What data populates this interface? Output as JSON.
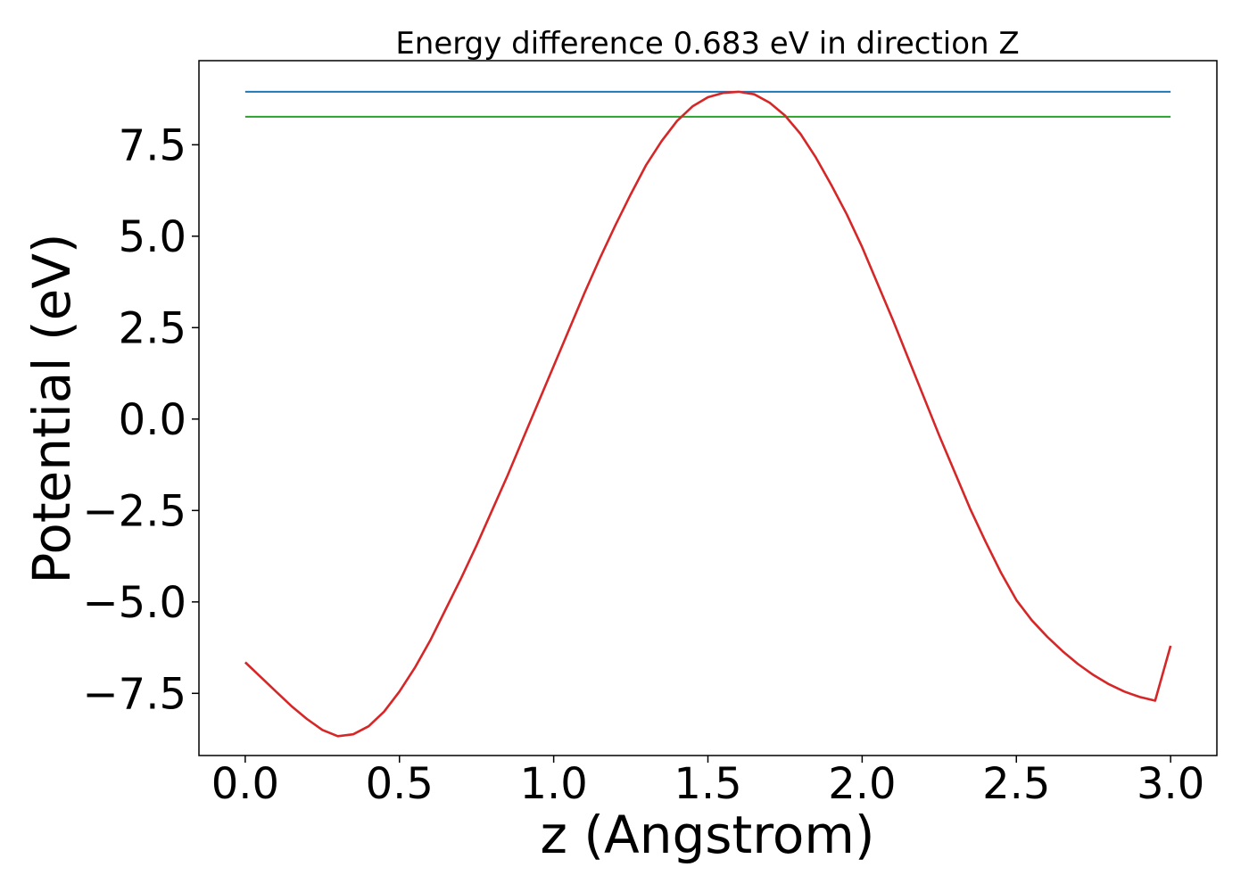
{
  "chart_data": {
    "type": "line",
    "title": "Energy difference 0.683 eV in direction Z",
    "xlabel": "z (Angstrom)",
    "ylabel": "Potential (eV)",
    "xlim": [
      -0.15,
      3.15
    ],
    "ylim": [
      -9.2,
      9.8
    ],
    "xticks": [
      0.0,
      0.5,
      1.0,
      1.5,
      2.0,
      2.5,
      3.0
    ],
    "xtick_labels": [
      "0.0",
      "0.5",
      "1.0",
      "1.5",
      "2.0",
      "2.5",
      "3.0"
    ],
    "yticks": [
      -7.5,
      -5.0,
      -2.5,
      0.0,
      2.5,
      5.0,
      7.5
    ],
    "ytick_labels": [
      "−7.5",
      "−5.0",
      "−2.5",
      "0.0",
      "2.5",
      "5.0",
      "7.5"
    ],
    "grid": false,
    "series": [
      {
        "color": "#d62728",
        "x": [
          0.0,
          0.05,
          0.1,
          0.15,
          0.2,
          0.25,
          0.3,
          0.35,
          0.4,
          0.45,
          0.5,
          0.55,
          0.6,
          0.65,
          0.7,
          0.75,
          0.8,
          0.85,
          0.9,
          0.95,
          1.0,
          1.05,
          1.1,
          1.15,
          1.2,
          1.25,
          1.3,
          1.35,
          1.4,
          1.45,
          1.5,
          1.55,
          1.6,
          1.65,
          1.7,
          1.75,
          1.8,
          1.85,
          1.9,
          1.95,
          2.0,
          2.05,
          2.1,
          2.15,
          2.2,
          2.25,
          2.3,
          2.35,
          2.4,
          2.45,
          2.5,
          2.55,
          2.6,
          2.65,
          2.7,
          2.75,
          2.8,
          2.85,
          2.9,
          2.95,
          3.0
        ],
        "y": [
          -6.65,
          -7.05,
          -7.45,
          -7.85,
          -8.2,
          -8.5,
          -8.67,
          -8.62,
          -8.4,
          -8.0,
          -7.45,
          -6.8,
          -6.05,
          -5.2,
          -4.35,
          -3.45,
          -2.5,
          -1.55,
          -0.55,
          0.45,
          1.45,
          2.45,
          3.45,
          4.4,
          5.3,
          6.15,
          6.95,
          7.6,
          8.15,
          8.55,
          8.8,
          8.92,
          8.95,
          8.88,
          8.65,
          8.3,
          7.8,
          7.15,
          6.4,
          5.6,
          4.7,
          3.7,
          2.7,
          1.65,
          0.6,
          -0.45,
          -1.45,
          -2.45,
          -3.35,
          -4.2,
          -4.95,
          -5.5,
          -5.95,
          -6.35,
          -6.7,
          -7.0,
          -7.25,
          -7.45,
          -7.6,
          -7.7,
          -6.2
        ],
        "smooth_note": ""
      }
    ],
    "hlines": [
      {
        "y": 8.95,
        "x": [
          0.0,
          3.0
        ],
        "color": "#1f77b4"
      },
      {
        "y": 8.267,
        "x": [
          0.0,
          3.0
        ],
        "color": "#2ca02c"
      }
    ]
  }
}
